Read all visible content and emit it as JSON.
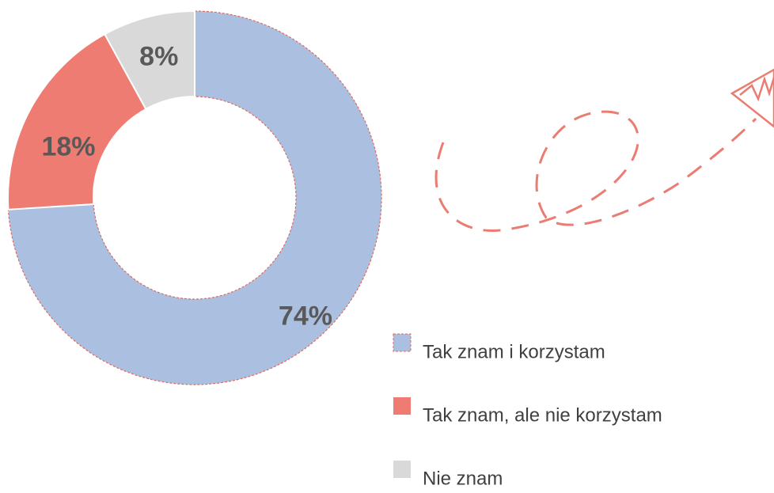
{
  "chart_data": {
    "type": "donut",
    "categories": [
      "Tak znam i korzystam",
      "Tak znam, ale nie korzystam",
      "Nie znam"
    ],
    "values": [
      74,
      18,
      8
    ],
    "value_labels": [
      "74%",
      "18%",
      "8%"
    ],
    "colors": [
      "#abc0e0",
      "#ef7c72",
      "#d9d9d9"
    ]
  }
}
